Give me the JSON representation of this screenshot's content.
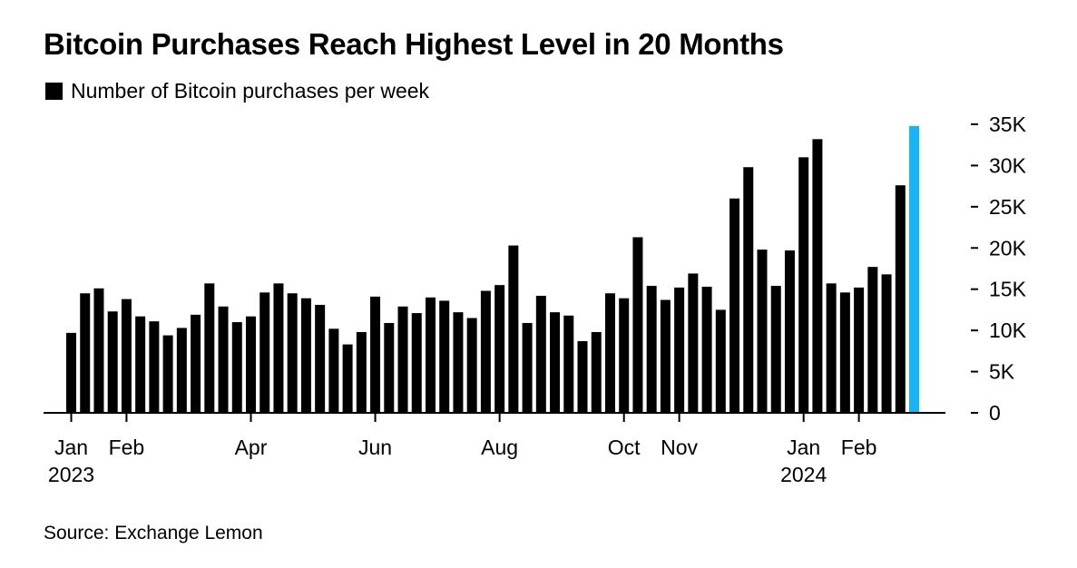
{
  "chart_data": {
    "type": "bar",
    "title": "Bitcoin Purchases Reach Highest Level in 20 Months",
    "legend": "Number of Bitcoin purchases per week",
    "source": "Source: Exchange Lemon",
    "ylim": [
      0,
      35000
    ],
    "y_ticks": [
      {
        "value": 0,
        "label": "0"
      },
      {
        "value": 5000,
        "label": "5K"
      },
      {
        "value": 10000,
        "label": "10K"
      },
      {
        "value": 15000,
        "label": "15K"
      },
      {
        "value": 20000,
        "label": "20K"
      },
      {
        "value": 25000,
        "label": "25K"
      },
      {
        "value": 30000,
        "label": "30K"
      },
      {
        "value": 35000,
        "label": "35K"
      }
    ],
    "x_ticks": [
      {
        "bar_index": 0,
        "label": "Jan",
        "sublabel": "2023"
      },
      {
        "bar_index": 4,
        "label": "Feb",
        "sublabel": ""
      },
      {
        "bar_index": 13,
        "label": "Apr",
        "sublabel": ""
      },
      {
        "bar_index": 22,
        "label": "Jun",
        "sublabel": ""
      },
      {
        "bar_index": 31,
        "label": "Aug",
        "sublabel": ""
      },
      {
        "bar_index": 40,
        "label": "Oct",
        "sublabel": ""
      },
      {
        "bar_index": 44,
        "label": "Nov",
        "sublabel": ""
      },
      {
        "bar_index": 53,
        "label": "Jan",
        "sublabel": "2024"
      },
      {
        "bar_index": 57,
        "label": "Feb",
        "sublabel": ""
      }
    ],
    "colors": {
      "bar": "#000000",
      "highlight": "#1ab3f4",
      "axis": "#000000"
    },
    "highlight_index": 61,
    "values": [
      9700,
      14500,
      15100,
      12300,
      13800,
      11700,
      11100,
      9400,
      10300,
      11900,
      15700,
      12900,
      11000,
      11700,
      14600,
      15700,
      14500,
      13900,
      13100,
      10200,
      8300,
      9800,
      14100,
      10900,
      12900,
      12100,
      14000,
      13600,
      12200,
      11500,
      14800,
      15500,
      20300,
      10900,
      14200,
      12200,
      11800,
      8700,
      9800,
      14500,
      13900,
      21300,
      15400,
      13700,
      15200,
      16900,
      15300,
      12500,
      26000,
      29800,
      19800,
      15400,
      19700,
      31000,
      33200,
      15700,
      14600,
      15200,
      17700,
      16800,
      27600,
      34800
    ]
  }
}
